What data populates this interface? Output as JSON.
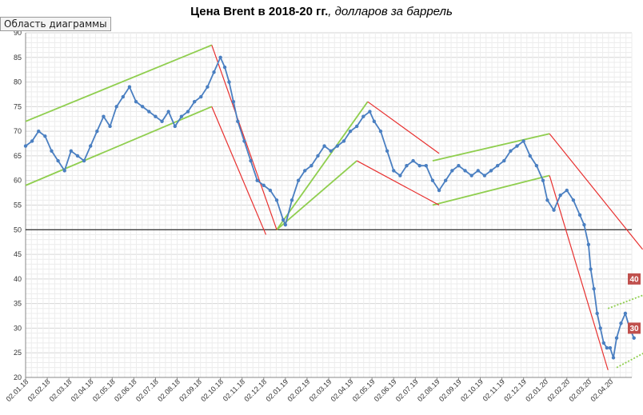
{
  "title": {
    "bold": "Цена Brent в 2018-20 гг.",
    "italic": ", долларов за баррель"
  },
  "tooltip": "Область диаграммы",
  "colors": {
    "series": "#4a7fc1",
    "trend_green": "#8fce4e",
    "trend_red": "#e8302f",
    "level_line": "#000000",
    "badge": "#c0504d"
  },
  "chart_data": {
    "type": "line",
    "title": "Цена Brent в 2018-20 гг., долларов за баррель",
    "ylim": [
      20,
      90
    ],
    "y_ticks": [
      20,
      25,
      30,
      35,
      40,
      45,
      50,
      55,
      60,
      65,
      70,
      75,
      80,
      85,
      90
    ],
    "x_tick_labels": [
      "02.01.18",
      "02.02.18",
      "02.03.18",
      "02.04.18",
      "02.05.18",
      "02.06.18",
      "02.07.18",
      "02.08.18",
      "02.09.18",
      "02.10.18",
      "02.11.18",
      "02.12.18",
      "02.01.19",
      "02.02.19",
      "02.03.19",
      "02.04.19",
      "02.05.19",
      "02.06.19",
      "02.07.19",
      "02.08.19",
      "02.09.19",
      "02.10.19",
      "02.11.19",
      "02.12.19",
      "02.01.20",
      "02.02.20",
      "02.03.20",
      "02.04.20"
    ],
    "grid": true,
    "reference_line": 50,
    "series": [
      {
        "months": [
          0,
          0.3,
          0.6,
          0.9,
          1.2,
          1.5,
          1.8,
          2.1,
          2.4,
          2.7,
          3.0,
          3.3,
          3.6,
          3.9,
          4.2,
          4.5,
          4.8,
          5.1,
          5.4,
          5.7,
          6.0,
          6.3,
          6.6,
          6.9,
          7.2,
          7.5,
          7.8,
          8.1,
          8.4,
          8.7,
          9.0,
          9.2,
          9.4,
          9.6,
          9.8,
          10.1,
          10.4,
          10.7,
          11.0,
          11.3,
          11.6,
          11.9,
          12.0,
          12.3,
          12.6,
          12.9,
          13.2,
          13.5,
          13.8,
          14.1,
          14.4,
          14.7,
          15.0,
          15.3,
          15.6,
          15.9,
          16.1,
          16.4,
          16.7,
          17.0,
          17.3,
          17.6,
          17.9,
          18.2,
          18.5,
          18.8,
          19.1,
          19.4,
          19.7,
          20.0,
          20.3,
          20.6,
          20.9,
          21.2,
          21.5,
          21.8,
          22.1,
          22.4,
          22.7,
          23.0,
          23.3,
          23.6,
          23.9,
          24.1,
          24.4,
          24.7,
          25.0,
          25.3,
          25.6,
          25.8,
          26.0,
          26.1,
          26.25,
          26.4,
          26.55,
          26.7,
          26.85,
          27.0,
          27.15,
          27.3,
          27.5,
          27.7,
          27.9,
          28.1
        ],
        "values": [
          67,
          68,
          70,
          69,
          66,
          64,
          62,
          66,
          65,
          64,
          67,
          70,
          73,
          71,
          75,
          77,
          79,
          76,
          75,
          74,
          73,
          72,
          74,
          71,
          73,
          74,
          76,
          77,
          79,
          82,
          85,
          83,
          80,
          76,
          72,
          68,
          64,
          60,
          59,
          58,
          56,
          52,
          51,
          56,
          60,
          62,
          63,
          65,
          67,
          66,
          67,
          68,
          70,
          71,
          73,
          74,
          72,
          70,
          66,
          62,
          61,
          63,
          64,
          63,
          63,
          60,
          58,
          60,
          62,
          63,
          62,
          61,
          62,
          61,
          62,
          63,
          64,
          66,
          67,
          68,
          65,
          63,
          60,
          56,
          54,
          57,
          58,
          56,
          53,
          51,
          47,
          42,
          38,
          33,
          30,
          27,
          26,
          26,
          24,
          28,
          31,
          33,
          30,
          28
        ]
      }
    ],
    "badges": [
      "40",
      "30"
    ]
  }
}
